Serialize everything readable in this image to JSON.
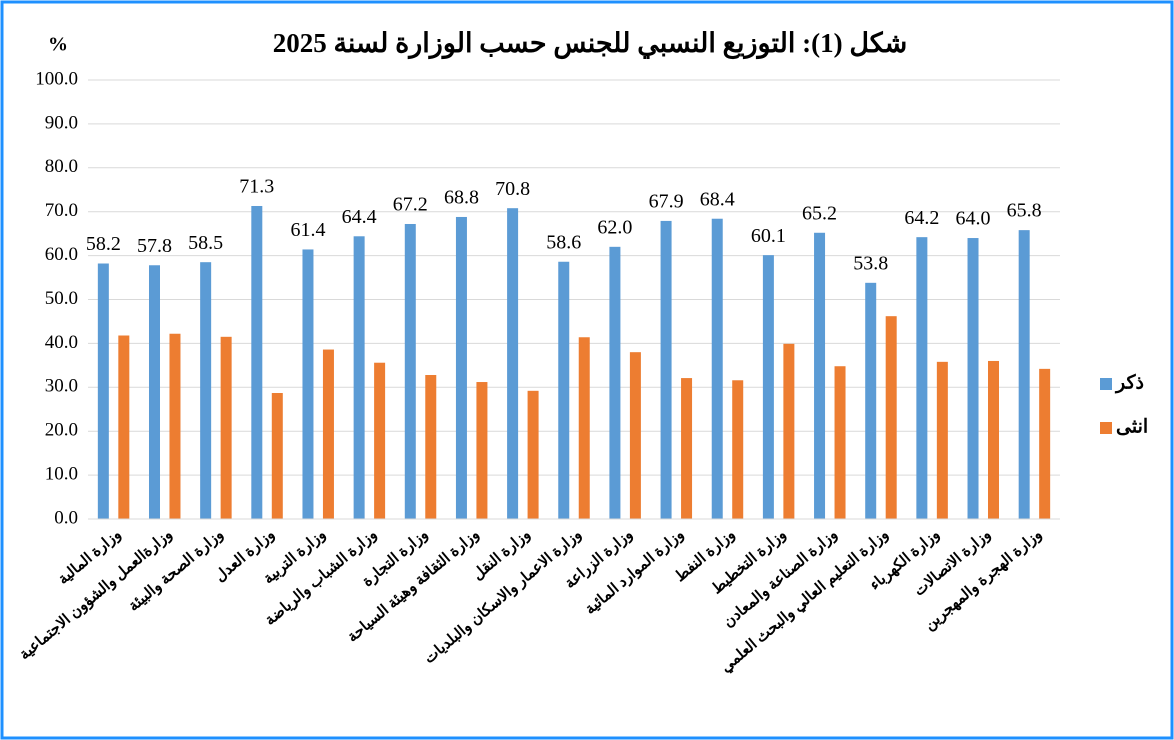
{
  "chart_data": {
    "type": "bar",
    "title": "شكل (1): التوزيع النسبي للجنس حسب الوزارة لسنة 2025",
    "ylabel": "%",
    "categories": [
      "وزارة المالية",
      "وزارةالعمل والشؤون الاجتماعية",
      "وزارة الصحة والبيئة",
      "وزارة العدل",
      "وزارة التربية",
      "وزارة الشباب والرياضة",
      "وزارة التجارة",
      "وزارة الثقافة وهيئة السياحة",
      "وزارة النقل",
      "وزارة الاعمار والاسكان والبلديات",
      "وزارة الزراعة",
      "وزارة الموارد المائية",
      "وزارة النفط",
      "وزارة التخطيط",
      "وزارة الصناعة والمعادن",
      "وزارة التعليم العالي والبحث العلمي",
      "وزارة الكهرباء",
      "وزارة الاتصالات",
      "وزارة الهجرة والمهجرين"
    ],
    "series": [
      {
        "name": "ذكر",
        "color": "#5b9bd5",
        "values": [
          58.2,
          57.8,
          58.5,
          71.3,
          61.4,
          64.4,
          67.2,
          68.8,
          70.8,
          58.6,
          62.0,
          67.9,
          68.4,
          60.1,
          65.2,
          53.8,
          64.2,
          64.0,
          65.8
        ],
        "value_labels": [
          "58.2",
          "57.8",
          "58.5",
          "71.3",
          "61.4",
          "64.4",
          "67.2",
          "68.8",
          "70.8",
          "58.6",
          "62.0",
          "67.9",
          "68.4",
          "60.1",
          "65.2",
          "53.8",
          "64.2",
          "64.0",
          "65.8"
        ]
      },
      {
        "name": "انثى",
        "color": "#ed7d31",
        "values": [
          41.8,
          42.2,
          41.5,
          28.7,
          38.6,
          35.6,
          32.8,
          31.2,
          29.2,
          41.4,
          38.0,
          32.1,
          31.6,
          39.9,
          34.8,
          46.2,
          35.8,
          36.0,
          34.2
        ]
      }
    ],
    "ylim": [
      0,
      100
    ],
    "yticks": [
      {
        "value": 0,
        "label": "0.0"
      },
      {
        "value": 10,
        "label": "10.0"
      },
      {
        "value": 20,
        "label": "20.0"
      },
      {
        "value": 30,
        "label": "30.0"
      },
      {
        "value": 40,
        "label": "40.0"
      },
      {
        "value": 50,
        "label": "50.0"
      },
      {
        "value": 60,
        "label": "60.0"
      },
      {
        "value": 70,
        "label": "70.0"
      },
      {
        "value": 80,
        "label": "80.0"
      },
      {
        "value": 90,
        "label": "90.0"
      },
      {
        "value": 100,
        "label": "100.0"
      }
    ],
    "grid": true,
    "legend": "right"
  }
}
